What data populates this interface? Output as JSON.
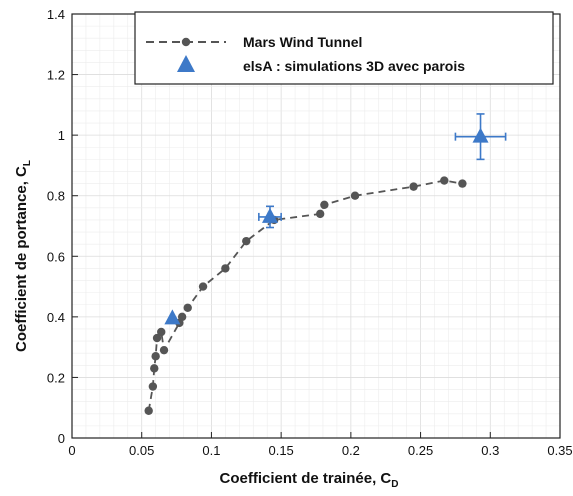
{
  "chart_data": {
    "type": "scatter",
    "title": "",
    "xlabel": "Coefficient de trainée, C",
    "xlabel_subscript": "D",
    "ylabel": "Coefficient de portance, C",
    "ylabel_subscript": "L",
    "xlim": [
      0,
      0.35
    ],
    "ylim": [
      0,
      1.4
    ],
    "xticks": [
      0,
      0.05,
      0.1,
      0.15,
      0.2,
      0.25,
      0.3,
      0.35
    ],
    "xtick_labels": [
      "0",
      "0.05",
      "0.1",
      "0.15",
      "0.2",
      "0.25",
      "0.3",
      "0.35"
    ],
    "yticks": [
      0,
      0.2,
      0.4,
      0.6,
      0.8,
      1,
      1.2,
      1.4
    ],
    "ytick_labels": [
      "0",
      "0.2",
      "0.4",
      "0.6",
      "0.8",
      "1",
      "1.2",
      "1.4"
    ],
    "grid": true,
    "legend_position": "top-right",
    "series": [
      {
        "name": "Mars Wind Tunnel",
        "style": "dashed line with circle markers",
        "color": "#555555",
        "x": [
          0.055,
          0.058,
          0.059,
          0.06,
          0.061,
          0.064,
          0.066,
          0.077,
          0.079,
          0.083,
          0.094,
          0.11,
          0.125,
          0.145,
          0.178,
          0.181,
          0.203,
          0.245,
          0.267,
          0.28
        ],
        "y": [
          0.09,
          0.17,
          0.23,
          0.27,
          0.33,
          0.35,
          0.29,
          0.38,
          0.4,
          0.43,
          0.5,
          0.56,
          0.65,
          0.72,
          0.74,
          0.77,
          0.8,
          0.83,
          0.85,
          0.84
        ]
      },
      {
        "name": "elsA : simulations 3D avec parois",
        "style": "triangle markers with error bars",
        "color": "#3d79c8",
        "x": [
          0.072,
          0.142,
          0.293
        ],
        "y": [
          0.395,
          0.73,
          0.995
        ],
        "x_err": [
          0.0,
          0.008,
          0.018
        ],
        "y_err": [
          0.0,
          0.035,
          0.075
        ]
      }
    ]
  }
}
